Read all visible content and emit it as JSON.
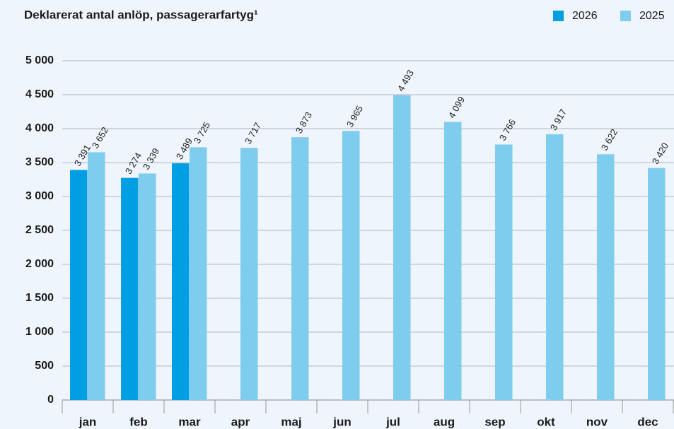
{
  "chart_data": {
    "type": "bar",
    "title": "Deklarerat antal anlöp, passagerarfartyg¹",
    "categories": [
      "jan",
      "feb",
      "mar",
      "apr",
      "maj",
      "jun",
      "jul",
      "aug",
      "sep",
      "okt",
      "nov",
      "dec"
    ],
    "series": [
      {
        "name": "2026",
        "color": "#009fe3",
        "values": [
          3391,
          3274,
          3489,
          null,
          null,
          null,
          null,
          null,
          null,
          null,
          null,
          null
        ],
        "value_labels": [
          "3 391",
          "3 274",
          "3 489",
          null,
          null,
          null,
          null,
          null,
          null,
          null,
          null,
          null
        ]
      },
      {
        "name": "2025",
        "color": "#7fcdee",
        "values": [
          3652,
          3339,
          3725,
          3717,
          3873,
          3965,
          4493,
          4099,
          3766,
          3917,
          3622,
          3420
        ],
        "value_labels": [
          "3 652",
          "3 339",
          "3 725",
          "3 717",
          "3 873",
          "3 965",
          "4 493",
          "4 099",
          "3 766",
          "3 917",
          "3 622",
          "3 420"
        ]
      }
    ],
    "ylim": [
      0,
      5000
    ],
    "yticks": [
      0,
      500,
      {
        "value": 1000,
        "label": "1 000"
      },
      {
        "value": 1500,
        "label": "1 500"
      },
      {
        "value": 2000,
        "label": "2 000"
      },
      {
        "value": 2500,
        "label": "2 500"
      },
      {
        "value": 3000,
        "label": "3 000"
      },
      {
        "value": 3500,
        "label": "3 500"
      },
      {
        "value": 4000,
        "label": "4 000"
      },
      {
        "value": 4500,
        "label": "4 500"
      },
      {
        "value": 5000,
        "label": "5 000"
      }
    ],
    "grid": true,
    "legend": "top-right"
  }
}
